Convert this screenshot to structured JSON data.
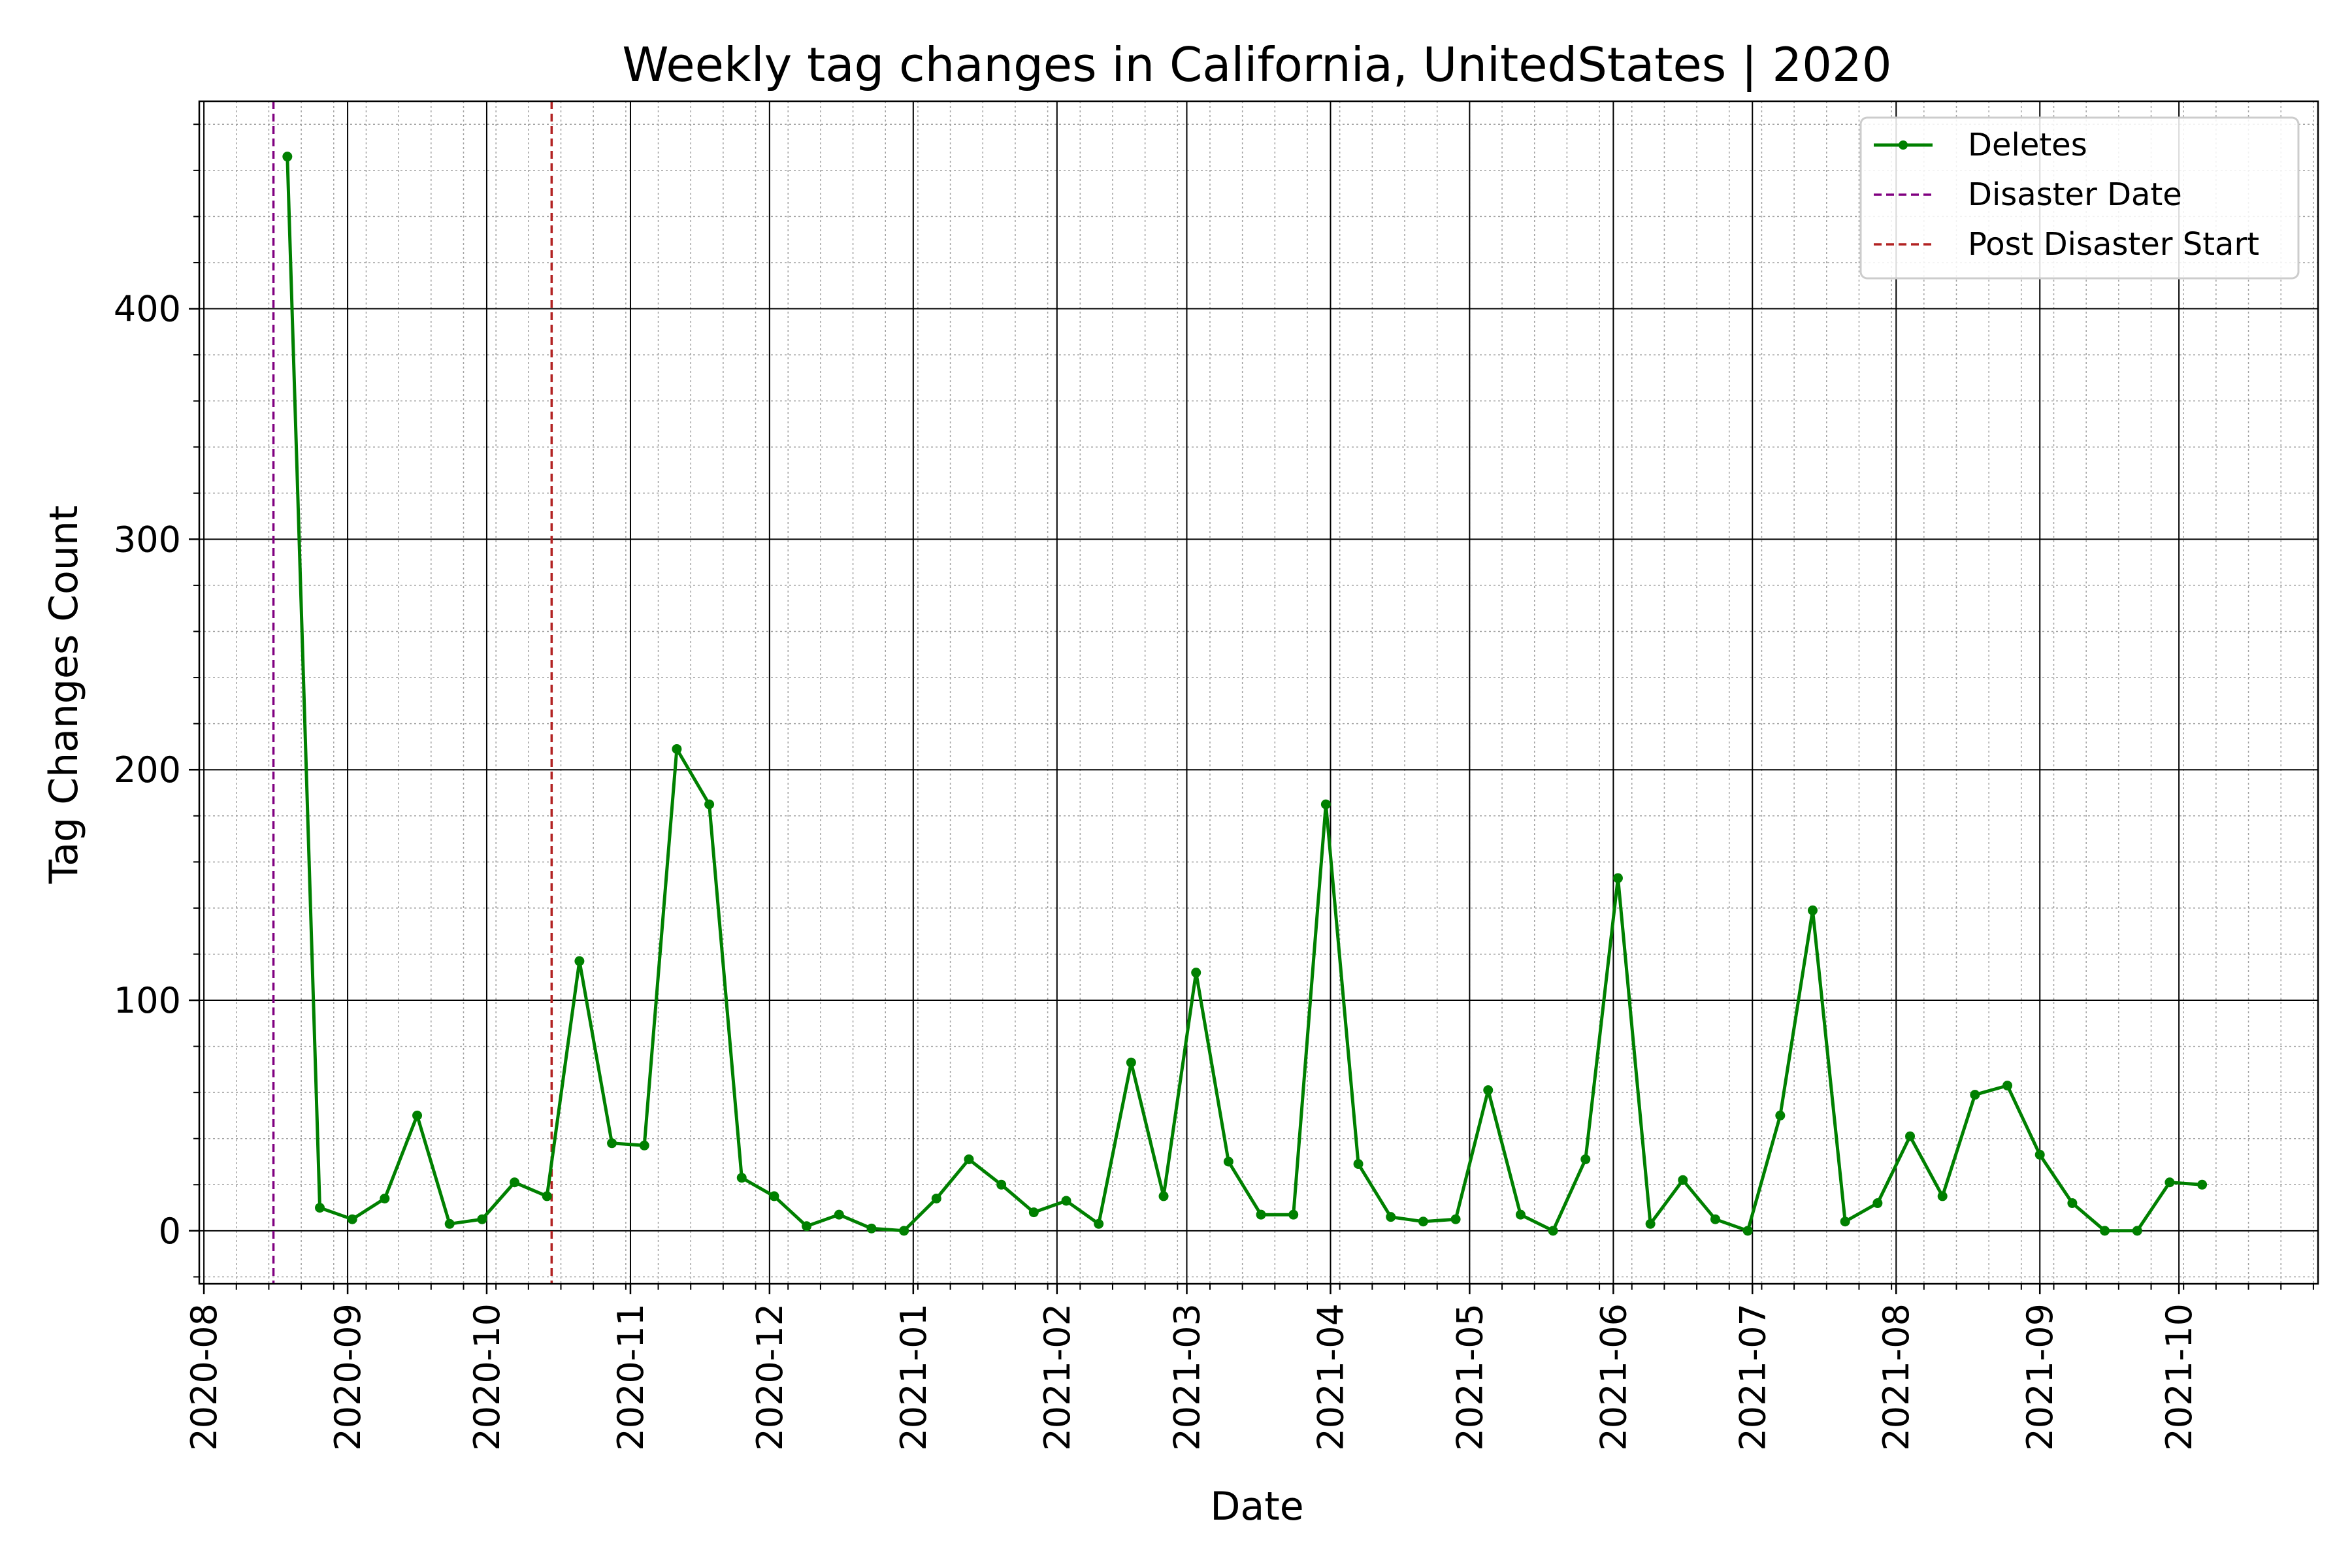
{
  "chart_data": {
    "type": "line",
    "title": "Weekly tag changes in California, UnitedStates | 2020",
    "xlabel": "Date",
    "ylabel": "Tag Changes Count",
    "xlim": [
      "2020-07-31",
      "2021-10-31"
    ],
    "ylim": [
      -23,
      490
    ],
    "x_ticks": [
      "2020-08-01",
      "2020-09-01",
      "2020-10-01",
      "2020-11-01",
      "2020-12-01",
      "2021-01-01",
      "2021-02-01",
      "2021-03-01",
      "2021-04-01",
      "2021-05-01",
      "2021-06-01",
      "2021-07-01",
      "2021-08-01",
      "2021-09-01",
      "2021-10-01"
    ],
    "x_tick_labels": [
      "2020-08",
      "2020-09",
      "2020-10",
      "2020-11",
      "2020-12",
      "2021-01",
      "2021-02",
      "2021-03",
      "2021-04",
      "2021-05",
      "2021-06",
      "2021-07",
      "2021-08",
      "2021-09",
      "2021-10"
    ],
    "y_ticks": [
      0,
      100,
      200,
      300,
      400
    ],
    "y_tick_labels": [
      "0",
      "100",
      "200",
      "300",
      "400"
    ],
    "grid": {
      "major": true,
      "minor": true
    },
    "legend": {
      "position": "top-right",
      "entries": [
        "Deletes",
        "Disaster Date",
        "Post Disaster Start"
      ]
    },
    "series": [
      {
        "name": "Deletes",
        "color": "#008000",
        "x": [
          "2020-08-19",
          "2020-08-26",
          "2020-09-02",
          "2020-09-09",
          "2020-09-16",
          "2020-09-23",
          "2020-09-30",
          "2020-10-07",
          "2020-10-14",
          "2020-10-21",
          "2020-10-28",
          "2020-11-04",
          "2020-11-11",
          "2020-11-18",
          "2020-11-25",
          "2020-12-02",
          "2020-12-09",
          "2020-12-16",
          "2020-12-23",
          "2020-12-30",
          "2021-01-06",
          "2021-01-13",
          "2021-01-20",
          "2021-01-27",
          "2021-02-03",
          "2021-02-10",
          "2021-02-17",
          "2021-02-24",
          "2021-03-03",
          "2021-03-10",
          "2021-03-17",
          "2021-03-24",
          "2021-03-31",
          "2021-04-07",
          "2021-04-14",
          "2021-04-21",
          "2021-04-28",
          "2021-05-05",
          "2021-05-12",
          "2021-05-19",
          "2021-05-26",
          "2021-06-02",
          "2021-06-09",
          "2021-06-16",
          "2021-06-23",
          "2021-06-30",
          "2021-07-07",
          "2021-07-14",
          "2021-07-21",
          "2021-07-28",
          "2021-08-04",
          "2021-08-11",
          "2021-08-18",
          "2021-08-25",
          "2021-09-01",
          "2021-09-08",
          "2021-09-15",
          "2021-09-22",
          "2021-09-29",
          "2021-10-06"
        ],
        "values": [
          466,
          10,
          5,
          14,
          50,
          3,
          5,
          21,
          15,
          117,
          38,
          37,
          209,
          185,
          23,
          15,
          2,
          7,
          1,
          0,
          14,
          31,
          20,
          8,
          13,
          3,
          73,
          15,
          112,
          30,
          7,
          7,
          185,
          29,
          6,
          4,
          5,
          61,
          7,
          0,
          31,
          153,
          3,
          22,
          5,
          0,
          50,
          139,
          4,
          12,
          41,
          15,
          59,
          63,
          33,
          12,
          0,
          0,
          21,
          20
        ]
      }
    ],
    "vlines": [
      {
        "name": "Disaster Date",
        "x": "2020-08-16",
        "color": "#800080"
      },
      {
        "name": "Post Disaster Start",
        "x": "2020-10-15",
        "color": "#b22222"
      }
    ]
  }
}
